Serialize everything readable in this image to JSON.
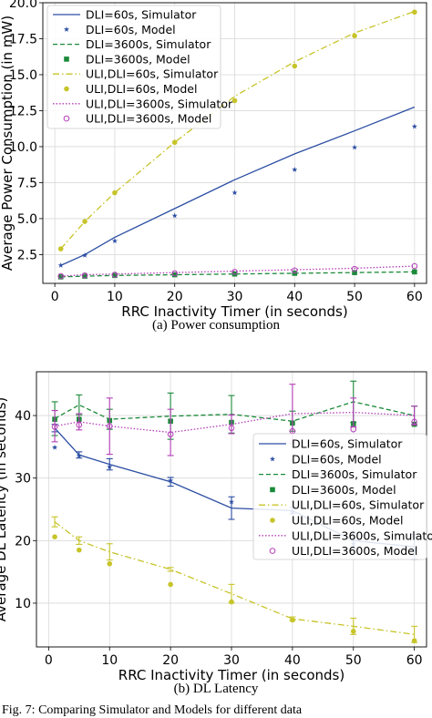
{
  "chart_data": [
    {
      "type": "line",
      "x": [
        1,
        5,
        10,
        20,
        30,
        40,
        50,
        60
      ],
      "xlabel": "RRC Inactivity Timer (in seconds)",
      "ylabel": "Average Power Consumption (in mW)",
      "xlim": [
        -2,
        62
      ],
      "ylim": [
        0.5,
        20
      ],
      "xticks": [
        "0",
        "10",
        "20",
        "30",
        "40",
        "50",
        "60"
      ],
      "yticks": [
        "2.5",
        "5.0",
        "7.5",
        "10.0",
        "12.5",
        "15.0",
        "17.5",
        "20.0"
      ],
      "legend_position": "top-left",
      "grid": true,
      "series": [
        {
          "name": "DLI=60s, Simulator",
          "style": "solid-line",
          "color": "#2c4ea3",
          "values": [
            1.75,
            2.5,
            3.7,
            5.7,
            7.7,
            9.5,
            11.1,
            12.75
          ]
        },
        {
          "name": "DLI=60s, Model",
          "style": "star",
          "color": "#2c4ea3",
          "values": [
            1.75,
            2.45,
            3.45,
            5.2,
            6.8,
            8.4,
            9.95,
            11.4
          ]
        },
        {
          "name": "DLI=3600s, Simulator",
          "style": "dashed-line",
          "color": "#1b8a3a",
          "values": [
            0.95,
            1.0,
            1.05,
            1.1,
            1.15,
            1.2,
            1.25,
            1.3
          ]
        },
        {
          "name": "DLI=3600s, Model",
          "style": "square",
          "color": "#1b8a3a",
          "values": [
            0.95,
            1.0,
            1.05,
            1.1,
            1.15,
            1.2,
            1.25,
            1.3
          ]
        },
        {
          "name": "ULI,DLI=60s, Simulator",
          "style": "dashdot-line",
          "color": "#c7c42a",
          "values": [
            2.9,
            4.8,
            6.8,
            10.3,
            13.5,
            15.9,
            17.9,
            19.4
          ]
        },
        {
          "name": "ULI,DLI=60s, Model",
          "style": "dot",
          "color": "#c7c42a",
          "values": [
            2.9,
            4.8,
            6.8,
            10.3,
            13.2,
            15.6,
            17.7,
            19.35
          ]
        },
        {
          "name": "ULI,DLI=3600s, Simulator",
          "style": "dotted-line",
          "color": "#b43db8",
          "values": [
            1.0,
            1.1,
            1.15,
            1.25,
            1.35,
            1.45,
            1.55,
            1.7
          ]
        },
        {
          "name": "ULI,DLI=3600s, Model",
          "style": "circle",
          "color": "#b43db8",
          "values": [
            1.0,
            1.05,
            1.1,
            1.2,
            1.3,
            1.4,
            1.5,
            1.7
          ]
        }
      ],
      "caption": "(a) Power consumption"
    },
    {
      "type": "line",
      "x": [
        1,
        5,
        10,
        20,
        30,
        40,
        50,
        60
      ],
      "xlabel": "RRC Inactivity Timer (in seconds)",
      "ylabel": "Average DL Latency (in seconds)",
      "xlim": [
        -2,
        62
      ],
      "ylim": [
        3,
        47
      ],
      "xticks": [
        "0",
        "10",
        "20",
        "30",
        "40",
        "50",
        "60"
      ],
      "yticks": [
        "10",
        "20",
        "30",
        "40"
      ],
      "legend_position": "center-right",
      "grid": true,
      "series": [
        {
          "name": "DLI=60s, Simulator",
          "style": "solid-line",
          "color": "#2c4ea3",
          "values": [
            38.0,
            33.7,
            32.2,
            29.4,
            25.2,
            24.8,
            20.0,
            19.0
          ],
          "errors": [
            0.6,
            0.5,
            0.9,
            0.7,
            1.8,
            0.5,
            1.2,
            2.0
          ]
        },
        {
          "name": "DLI=60s, Model",
          "style": "star",
          "color": "#2c4ea3",
          "values": [
            34.9,
            33.6,
            31.8,
            29.6,
            26.2,
            24.6,
            19.5,
            18.5
          ]
        },
        {
          "name": "DLI=3600s, Simulator",
          "style": "dashed-line",
          "color": "#1b8a3a",
          "values": [
            39.5,
            41.7,
            39.4,
            39.9,
            40.2,
            39.1,
            42.2,
            40.0
          ],
          "errors": [
            2.7,
            1.6,
            1.6,
            3.7,
            3.0,
            1.6,
            3.3,
            1.5
          ]
        },
        {
          "name": "DLI=3600s, Model",
          "style": "square",
          "color": "#1b8a3a",
          "values": [
            39.4,
            39.4,
            39.2,
            39.1,
            38.9,
            38.8,
            38.7,
            38.6
          ]
        },
        {
          "name": "ULI,DLI=60s, Simulator",
          "style": "dashdot-line",
          "color": "#c7c42a",
          "values": [
            23.0,
            20.0,
            18.2,
            15.4,
            11.5,
            7.5,
            6.3,
            5.0
          ],
          "errors": [
            0.8,
            0.6,
            1.3,
            0.3,
            1.5,
            0.3,
            1.3,
            1.3
          ]
        },
        {
          "name": "ULI,DLI=60s, Model",
          "style": "dot",
          "color": "#c7c42a",
          "values": [
            20.6,
            18.5,
            16.3,
            13.0,
            10.2,
            7.3,
            5.5,
            4.0
          ]
        },
        {
          "name": "ULI,DLI=3600s, Simulator",
          "style": "dotted-line",
          "color": "#b43db8",
          "values": [
            38.3,
            39.0,
            38.3,
            37.3,
            38.6,
            40.3,
            40.5,
            40.0
          ],
          "errors": [
            2.5,
            1.3,
            4.5,
            3.7,
            1.5,
            4.7,
            2.3,
            1.5
          ]
        },
        {
          "name": "ULI,DLI=3600s, Model",
          "style": "circle",
          "color": "#b43db8",
          "values": [
            38.2,
            38.5,
            38.3,
            37.0,
            38.0,
            37.5,
            37.8,
            39.0
          ]
        }
      ],
      "caption": "(b) DL Latency"
    }
  ],
  "footer_text": "Fig. 7: Comparing Simulator and Models for different data"
}
